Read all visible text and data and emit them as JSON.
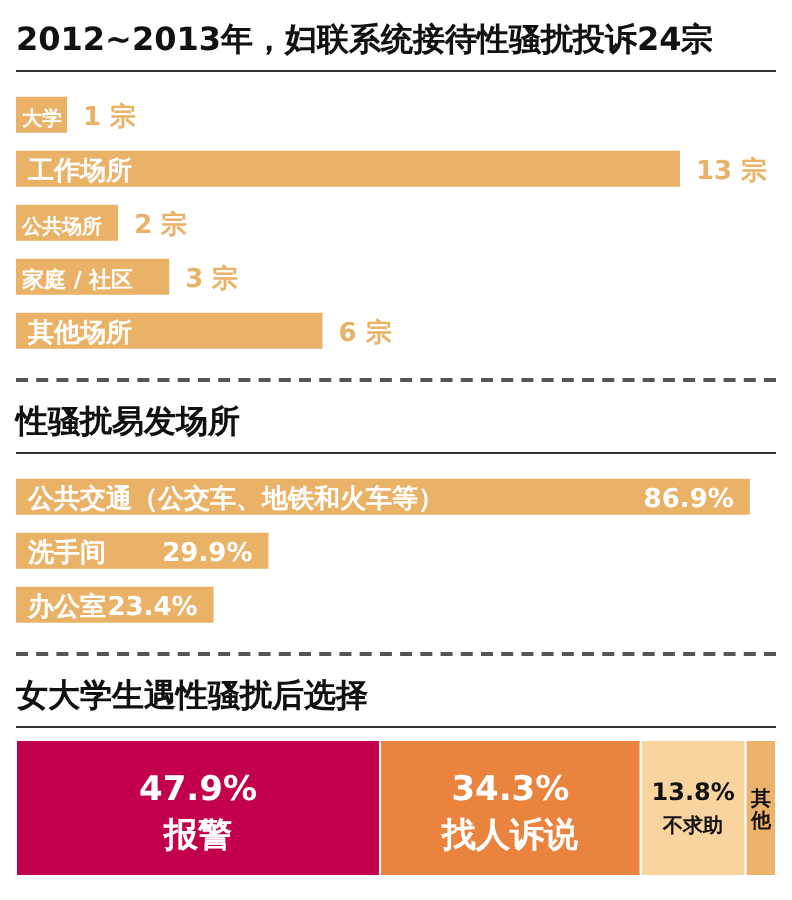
{
  "chart_data": [
    {
      "type": "bar",
      "orientation": "horizontal",
      "title": "2012~2013年，妇联系统接待性骚扰投诉24宗",
      "categories": [
        "大学",
        "工作场所",
        "公共场所",
        "家庭 / 社区",
        "其他场所"
      ],
      "values": [
        1,
        13,
        2,
        3,
        6
      ],
      "value_labels": [
        "1 宗",
        "13 宗",
        "2 宗",
        "3 宗",
        "6 宗"
      ],
      "color": "#eab267",
      "xlim": [
        0,
        13
      ],
      "tick_labels": false
    },
    {
      "type": "bar",
      "orientation": "horizontal",
      "title": "性骚扰易发场所",
      "categories": [
        "公共交通（公交车、地铁和火车等）",
        "洗手间",
        "办公室"
      ],
      "values": [
        86.9,
        29.9,
        23.4
      ],
      "value_labels": [
        "86.9%",
        "29.9%",
        "23.4%"
      ],
      "color": "#eab267",
      "xlim": [
        0,
        90
      ],
      "tick_labels": false
    },
    {
      "type": "bar",
      "orientation": "horizontal",
      "stacked": true,
      "title": "女大学生遇性骚扰后选择",
      "categories": [
        null
      ],
      "xlim": [
        0,
        100
      ],
      "tick_labels": false,
      "series": [
        {
          "name": "报警",
          "color": "#c2004c",
          "values": [
            47.9
          ],
          "value_labels": [
            "47.9%"
          ]
        },
        {
          "name": "找人诉说",
          "color": "#e9833d",
          "values": [
            34.3
          ],
          "value_labels": [
            "34.3%"
          ]
        },
        {
          "name": "不求助",
          "color": "#fad49f",
          "values": [
            13.8
          ],
          "value_labels": [
            "13.8%"
          ]
        },
        {
          "name": "其他",
          "color": "#eeb36a",
          "values": [
            4.0
          ],
          "value_labels": [
            null
          ]
        }
      ]
    }
  ]
}
